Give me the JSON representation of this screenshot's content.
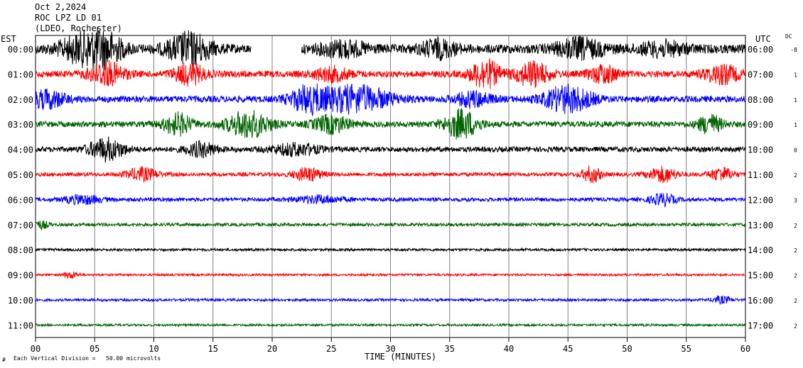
{
  "header": {
    "date": "Oct 2,2024",
    "station": "ROC LPZ LD 01",
    "network": "(LDEO, Rochester)"
  },
  "axes": {
    "left_label": "EST",
    "right_label": "UTC",
    "dc_label": "DC",
    "xlabel": "TIME (MINUTES)",
    "scale_note": "Each Vertical Division =   50.00 microvolts",
    "corner_mark": "#"
  },
  "chart_data": {
    "type": "line",
    "title": "ROC LPZ LD 01",
    "xlabel": "TIME (MINUTES)",
    "xlim": [
      0,
      60
    ],
    "x_ticks": [
      "00",
      "05",
      "10",
      "15",
      "20",
      "25",
      "30",
      "35",
      "40",
      "45",
      "50",
      "55",
      "60"
    ],
    "grid": true,
    "gap_minutes": [
      18.2,
      22.5
    ],
    "trace_colors": [
      "#000000",
      "#ff0000",
      "#0000ff",
      "#006400"
    ],
    "rows": [
      {
        "est": "00:00",
        "utc": "06:00",
        "dc": "-8",
        "amp": 14,
        "bursts": [
          [
            4,
            2,
            1.3
          ],
          [
            6,
            1.5,
            1.2
          ],
          [
            13,
            1.8,
            1.5
          ],
          [
            26,
            2,
            0.7
          ],
          [
            34,
            1.5,
            0.8
          ],
          [
            46,
            2,
            0.9
          ],
          [
            53,
            2,
            0.6
          ]
        ]
      },
      {
        "est": "01:00",
        "utc": "07:00",
        "dc": "1",
        "amp": 10,
        "bursts": [
          [
            6,
            1.5,
            1.6
          ],
          [
            13,
            1.3,
            1.4
          ],
          [
            25,
            1.5,
            0.9
          ],
          [
            38,
            1.2,
            2.0
          ],
          [
            42,
            1.4,
            1.7
          ],
          [
            48,
            1.2,
            1.2
          ],
          [
            58,
            1.5,
            1.2
          ]
        ]
      },
      {
        "est": "02:00",
        "utc": "08:00",
        "dc": "1",
        "amp": 10,
        "bursts": [
          [
            1,
            1.5,
            1.2
          ],
          [
            23,
            1.5,
            1.6
          ],
          [
            27,
            3,
            1.8
          ],
          [
            37,
            1.5,
            1.0
          ],
          [
            45,
            2,
            1.8
          ]
        ]
      },
      {
        "est": "03:00",
        "utc": "09:00",
        "dc": "1",
        "amp": 9,
        "bursts": [
          [
            12,
            1.2,
            1.6
          ],
          [
            18,
            1.8,
            2.0
          ],
          [
            25,
            1.5,
            1.3
          ],
          [
            36,
            1.4,
            2.2
          ],
          [
            57,
            1.0,
            1.4
          ]
        ]
      },
      {
        "est": "04:00",
        "utc": "10:00",
        "dc": "0",
        "amp": 8,
        "bursts": [
          [
            6,
            1.5,
            1.9
          ],
          [
            14,
            1.3,
            1.2
          ],
          [
            22,
            2,
            1.0
          ]
        ]
      },
      {
        "est": "05:00",
        "utc": "11:00",
        "dc": "2",
        "amp": 6,
        "bursts": [
          [
            9,
            1.3,
            1.5
          ],
          [
            23,
            1.2,
            1.5
          ],
          [
            47,
            0.8,
            1.8
          ],
          [
            53,
            1.2,
            1.7
          ],
          [
            58,
            1.0,
            1.5
          ]
        ]
      },
      {
        "est": "06:00",
        "utc": "12:00",
        "dc": "3",
        "amp": 6,
        "bursts": [
          [
            4,
            1.5,
            1.0
          ],
          [
            24,
            2,
            0.8
          ],
          [
            53,
            1.0,
            1.3
          ]
        ]
      },
      {
        "est": "07:00",
        "utc": "13:00",
        "dc": "2",
        "amp": 5,
        "bursts": [
          [
            0.5,
            0.6,
            1.0
          ]
        ]
      },
      {
        "est": "08:00",
        "utc": "14:00",
        "dc": "2",
        "amp": 4,
        "bursts": []
      },
      {
        "est": "09:00",
        "utc": "15:00",
        "dc": "2",
        "amp": 3.5,
        "bursts": [
          [
            3,
            0.6,
            1.3
          ]
        ]
      },
      {
        "est": "10:00",
        "utc": "16:00",
        "dc": "2",
        "amp": 4,
        "bursts": [
          [
            58,
            0.8,
            1.2
          ]
        ]
      },
      {
        "est": "11:00",
        "utc": "17:00",
        "dc": "2",
        "amp": 3.5,
        "bursts": []
      }
    ]
  }
}
